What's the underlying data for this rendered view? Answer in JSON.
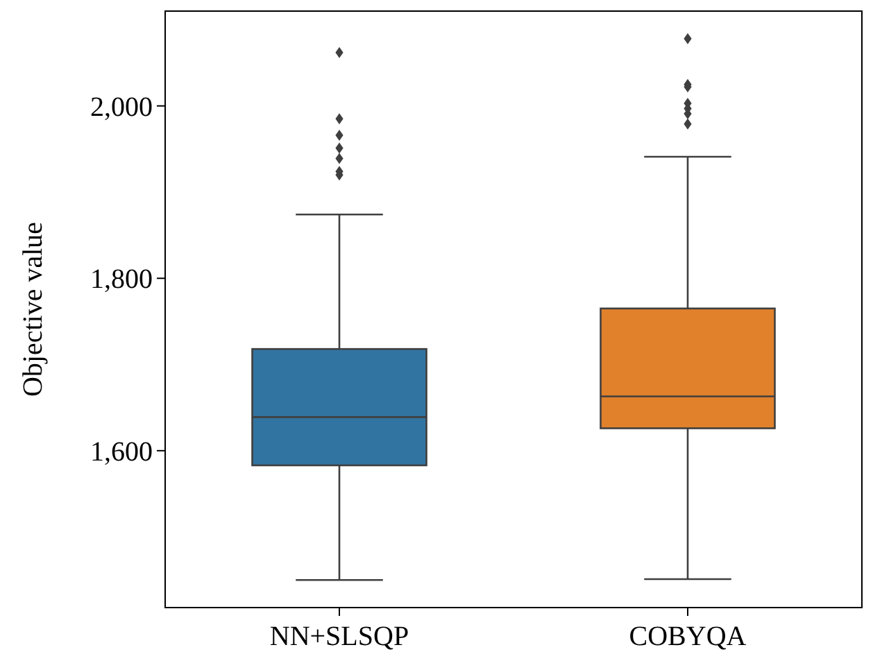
{
  "chart_data": {
    "type": "box",
    "ylabel": "Objective value",
    "categories": [
      "NN+SLSQP",
      "COBYQA"
    ],
    "colors": [
      "#3274a1",
      "#e1812c"
    ],
    "boxes": [
      {
        "low": 1450,
        "q1": 1583,
        "median": 1639,
        "q3": 1718,
        "high": 1874,
        "outliers": [
          2062,
          1985,
          1966,
          1951,
          1939,
          1924,
          1920
        ]
      },
      {
        "low": 1451,
        "q1": 1626,
        "median": 1663,
        "q3": 1765,
        "high": 1941,
        "outliers": [
          2078,
          2025,
          2022,
          2003,
          1997,
          1991,
          1979
        ]
      }
    ],
    "ylim": [
      1418,
      2110
    ],
    "yticks": [
      {
        "value": 1600,
        "label": "1,600"
      },
      {
        "value": 1800,
        "label": "1,800"
      },
      {
        "value": 2000,
        "label": "2,000"
      }
    ],
    "grid": false,
    "marker": "diamond"
  }
}
